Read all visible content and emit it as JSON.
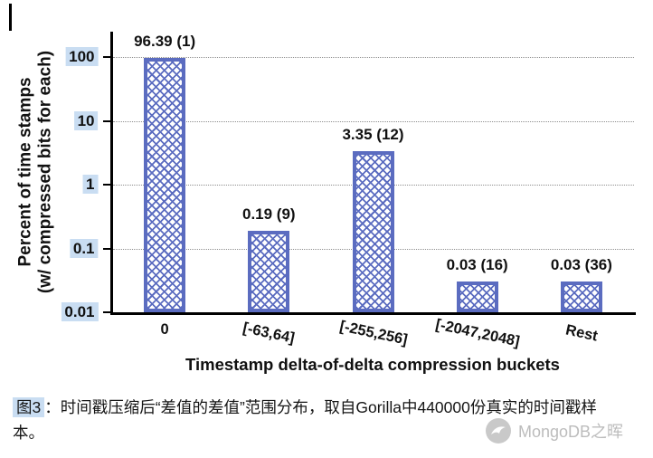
{
  "chart_data": {
    "type": "bar",
    "categories": [
      "0",
      "[-63,64]",
      "[-255,256]",
      "[-2047,2048]",
      "Rest"
    ],
    "values": [
      96.39,
      0.19,
      3.35,
      0.03,
      0.03
    ],
    "bar_labels": [
      "96.39 (1)",
      "0.19 (9)",
      "3.35 (12)",
      "0.03 (16)",
      "0.03 (36)"
    ],
    "compressed_bits": [
      1,
      9,
      12,
      16,
      36
    ],
    "xlabel": "Timestamp delta-of-delta compression buckets",
    "ylabel": "Percent of time stamps (w/ compressed bits for each)",
    "ylabel_line1": "Percent of time stamps",
    "ylabel_line2": "(w/ compressed bits for each)",
    "yscale": "log",
    "ylim": [
      0.01,
      100
    ],
    "ytick_labels": [
      "100",
      "10",
      "1",
      "0.1",
      "0.01"
    ],
    "grid": "horizontal-dotted",
    "legend": "none",
    "bar_color": "#5b6cc0",
    "highlight_color": "#c9ddf2"
  },
  "caption": {
    "label": "图3",
    "text": "：时间戳压缩后“差值的差值”范围分布，取自Gorilla中440000份真实的时间戳样本。"
  },
  "watermark": {
    "text": "MongoDB之晖"
  }
}
